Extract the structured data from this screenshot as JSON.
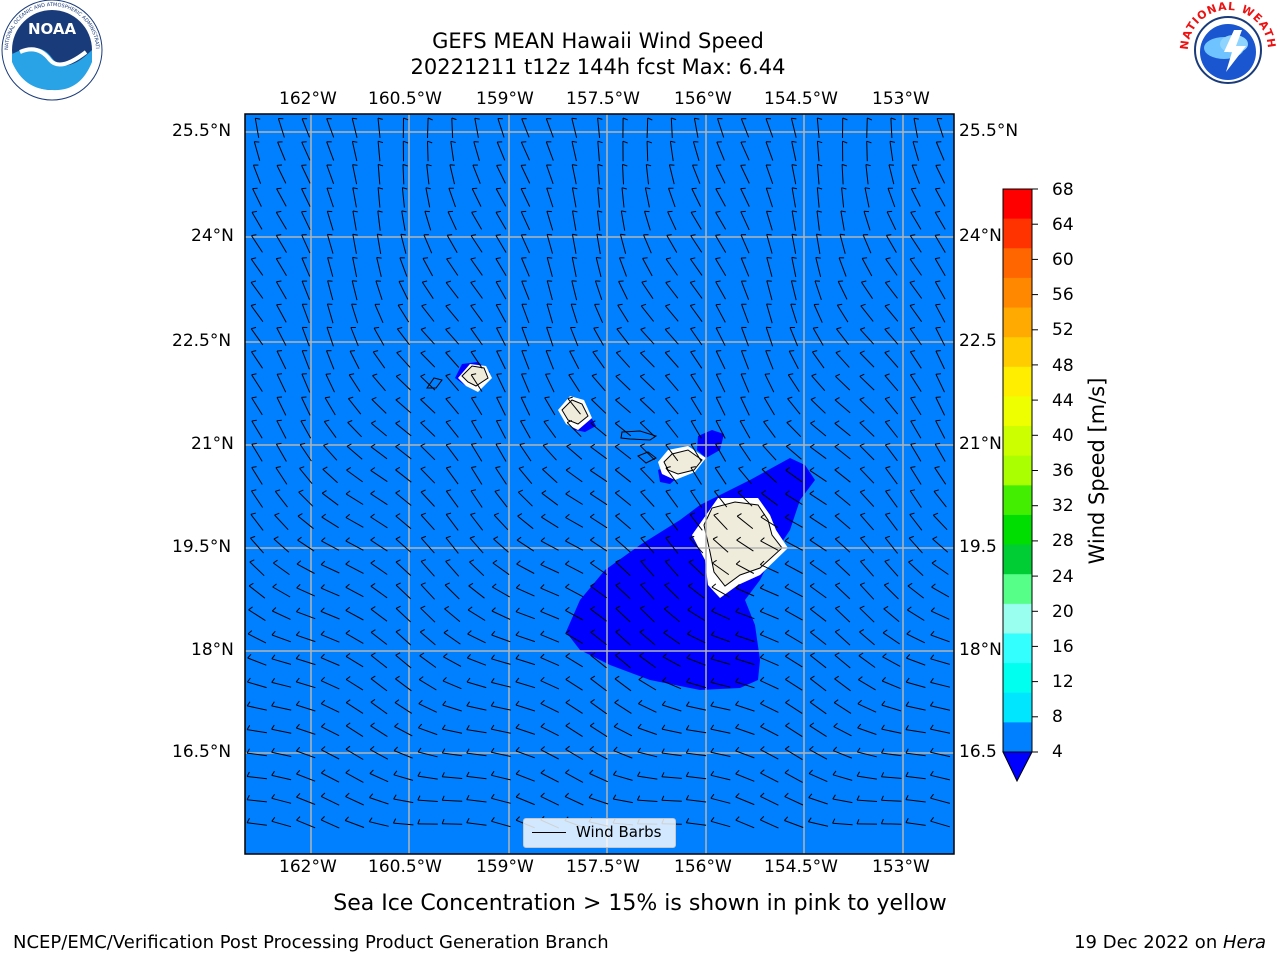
{
  "header": {
    "title": "GEFS MEAN Hawaii Wind Speed",
    "subtitle": "20221211 t12z 144h fcst   Max: 6.44"
  },
  "logos": {
    "left": {
      "icon": "noaa-logo",
      "text": "NOAA",
      "ring_text": "NATIONAL OCEANIC AND ATMOSPHERIC ADMINISTRATION · U.S. DEPARTMENT OF COMMERCE"
    },
    "right": {
      "icon": "nws-logo",
      "ring_text": "NATIONAL WEATHER SERVICE"
    }
  },
  "map": {
    "top_lon_labels": [
      "162°W",
      "160.5°W",
      "159°W",
      "157.5°W",
      "156°W",
      "154.5°W",
      "153°W"
    ],
    "bottom_lon_labels": [
      "162°W",
      "160.5°W",
      "159°W",
      "157.5°W",
      "156°W",
      "154.5°W",
      "153°W"
    ],
    "left_lat_labels": [
      "25.5°N",
      "24°N",
      "22.5°N",
      "21°N",
      "19.5°N",
      "18°N",
      "16.5°N"
    ],
    "right_lat_labels": [
      "25.5°N",
      "24°N",
      "22.5",
      "21°N",
      "19.5",
      "18°N",
      "16.5"
    ],
    "legend_label": "Wind Barbs",
    "ocean_color": "#0080ff",
    "low_wind_color": "#0000ff",
    "land_color": "#efecdc"
  },
  "colorbar": {
    "label": "Wind Speed [m/s]",
    "ticks": [
      "68",
      "64",
      "60",
      "56",
      "52",
      "48",
      "44",
      "40",
      "36",
      "32",
      "28",
      "24",
      "20",
      "16",
      "12",
      "8",
      "4"
    ],
    "colors_top_to_bottom": [
      "#ff0000",
      "#ff3300",
      "#ff6600",
      "#ff8800",
      "#ffaa00",
      "#ffcc00",
      "#ffee00",
      "#eeff00",
      "#ccff00",
      "#aaff00",
      "#44ee00",
      "#00dd00",
      "#00cc33",
      "#55ff88",
      "#99ffee",
      "#33ffff",
      "#00ffee",
      "#00e6ff",
      "#0080ff"
    ],
    "under_color": "#0000ff"
  },
  "footer": {
    "note": "Sea Ice Concentration > 15% is shown in pink to yellow",
    "credit": "NCEP/EMC/Verification Post Processing Product Generation Branch",
    "date": "19 Dec 2022 on ",
    "machine": "Hera"
  }
}
